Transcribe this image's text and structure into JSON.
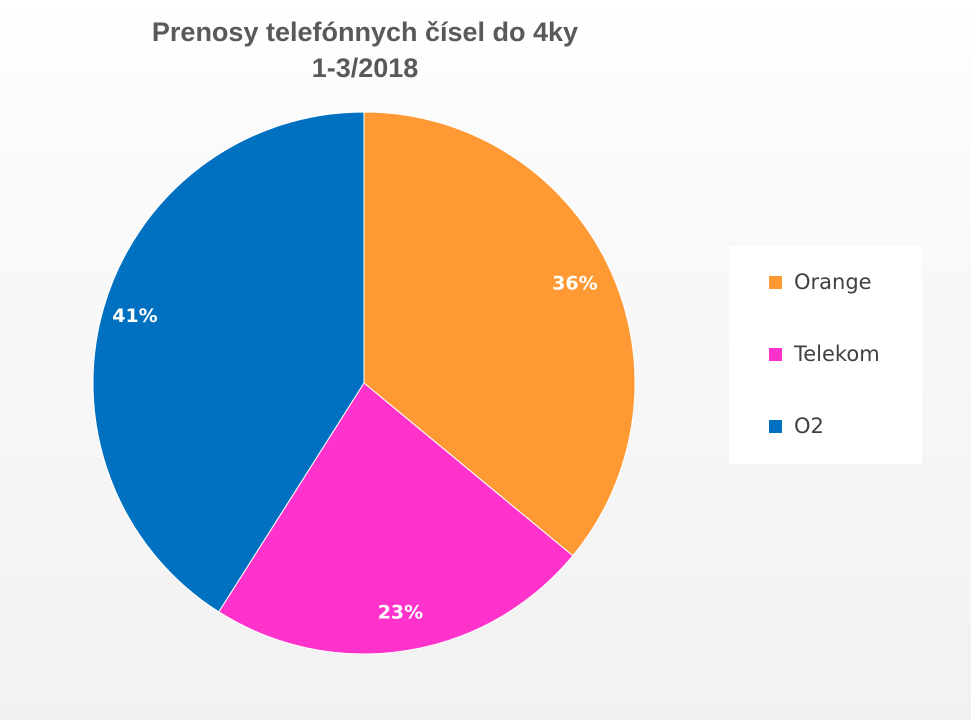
{
  "chart_data": {
    "type": "pie",
    "title": "Prenosy telefónnych čísel do 4ky",
    "subtitle": "1-3/2018",
    "categories": [
      "Orange",
      "Telekom",
      "O2"
    ],
    "values": [
      36,
      23,
      41
    ],
    "labels": [
      "36%",
      "23%",
      "41%"
    ],
    "colors": [
      "#ff9933",
      "#ff33cc",
      "#0070c0"
    ],
    "legend_position": "right",
    "start_angle": "12 o'clock",
    "direction": "clockwise"
  }
}
